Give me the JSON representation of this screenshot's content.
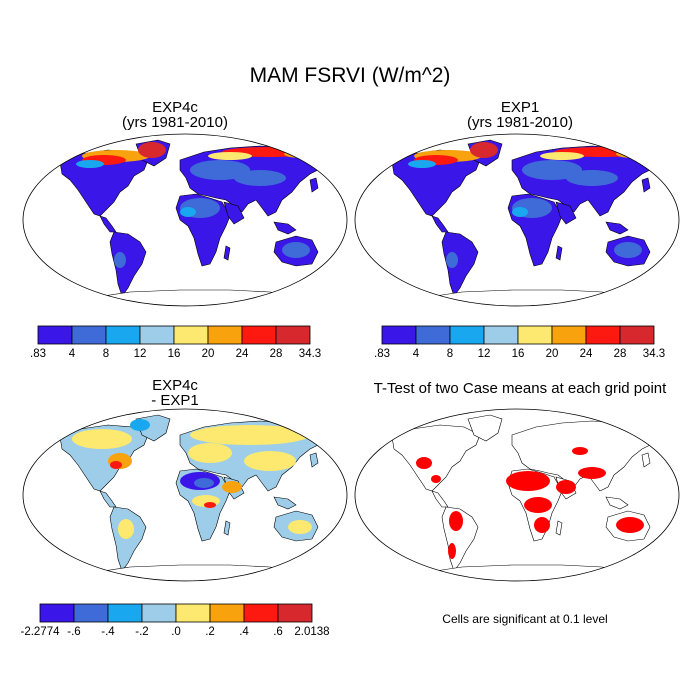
{
  "title": "MAM FSRVI (W/m^2)",
  "panels": [
    {
      "id": "exp4c",
      "title_lines": [
        "EXP4c",
        "(yrs 1981-2010)"
      ]
    },
    {
      "id": "exp1",
      "title_lines": [
        "EXP1",
        "(yrs 1981-2010)"
      ]
    },
    {
      "id": "diff",
      "title_lines": [
        "EXP4c",
        "- EXP1"
      ]
    },
    {
      "id": "ttest",
      "title_lines": [
        "T-Test of two Case means at each grid point"
      ]
    }
  ],
  "colorbars": {
    "absolute": {
      "colors": [
        "#3a16e8",
        "#3f6bd8",
        "#19a8ef",
        "#9dcde9",
        "#fde96f",
        "#f8a20e",
        "#fd1810",
        "#d6282d"
      ],
      "labels": [
        ".83",
        "4",
        "8",
        "12",
        "16",
        "20",
        "24",
        "28",
        "34.3"
      ]
    },
    "difference": {
      "colors": [
        "#3a16e8",
        "#3f6bd8",
        "#19a8ef",
        "#9dcde9",
        "#fde96f",
        "#f8a20e",
        "#fd1810",
        "#d6282d"
      ],
      "labels": [
        "-2.2774",
        "-.6",
        "-.4",
        "-.2",
        ".0",
        ".2",
        ".4",
        ".6",
        "2.0138"
      ]
    }
  },
  "ttest_note": "Cells are significant at 0.1 level",
  "map_fills": {
    "base_blue": "#3a16e8",
    "mid_blue": "#3f6bd8",
    "cyan": "#19a8ef",
    "light_blue": "#9dcde9",
    "yellow": "#fde96f",
    "orange": "#f8a20e",
    "red": "#fd1810",
    "dark_red": "#d6282d",
    "significant": "#ff0000"
  }
}
